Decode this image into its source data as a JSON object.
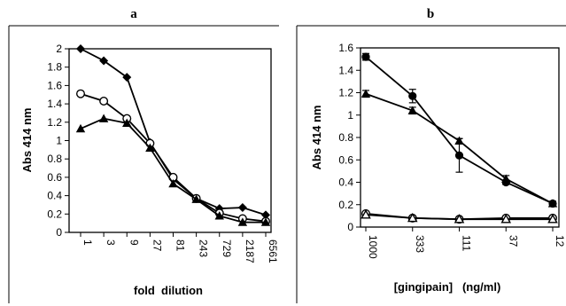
{
  "chart_data": [
    {
      "panel": "a",
      "type": "line",
      "xlabel": "fold  dilution",
      "ylabel": "Abs  414  nm",
      "categories": [
        "1",
        "3",
        "9",
        "27",
        "81",
        "243",
        "729",
        "2187",
        "6561"
      ],
      "ylim": [
        0,
        2
      ],
      "yticks": [
        "0",
        "0.2",
        "0.4",
        "0.6",
        "0.8",
        "1",
        "1.2",
        "1.4",
        "1.6",
        "1.8",
        "2"
      ],
      "grid": false,
      "series": [
        {
          "marker": "diamond-filled",
          "values": [
            2.0,
            1.87,
            1.69,
            0.98,
            0.58,
            0.37,
            0.26,
            0.27,
            0.19
          ]
        },
        {
          "marker": "circle-open",
          "values": [
            1.51,
            1.43,
            1.24,
            0.97,
            0.6,
            0.37,
            0.21,
            0.15,
            0.12
          ]
        },
        {
          "marker": "triangle-filled",
          "values": [
            1.13,
            1.24,
            1.19,
            0.92,
            0.53,
            0.36,
            0.18,
            0.11,
            0.11
          ]
        }
      ]
    },
    {
      "panel": "b",
      "type": "line",
      "xlabel": "[gingipain]   (ng/ml)",
      "ylabel": "Abs  414  nm",
      "categories": [
        "1000",
        "333",
        "111",
        "37",
        "12"
      ],
      "ylim": [
        0,
        1.6
      ],
      "yticks": [
        "0",
        "0.2",
        "0.4",
        "0.6",
        "0.8",
        "1",
        "1.2",
        "1.4",
        "1.6"
      ],
      "grid": false,
      "series": [
        {
          "marker": "circle-filled",
          "values": [
            1.52,
            1.17,
            0.64,
            0.4,
            0.21
          ],
          "errors": [
            0.03,
            0.06,
            0.15,
            0.02,
            0.02
          ]
        },
        {
          "marker": "triangle-filled",
          "values": [
            1.19,
            1.04,
            0.77,
            0.43,
            0.21
          ],
          "errors": [
            0.03,
            0.03,
            0.02,
            0.03,
            0.02
          ]
        },
        {
          "marker": "circle-open",
          "values": [
            0.12,
            0.08,
            0.07,
            0.08,
            0.08
          ]
        },
        {
          "marker": "triangle-open",
          "values": [
            0.11,
            0.08,
            0.07,
            0.07,
            0.07
          ]
        }
      ]
    }
  ]
}
